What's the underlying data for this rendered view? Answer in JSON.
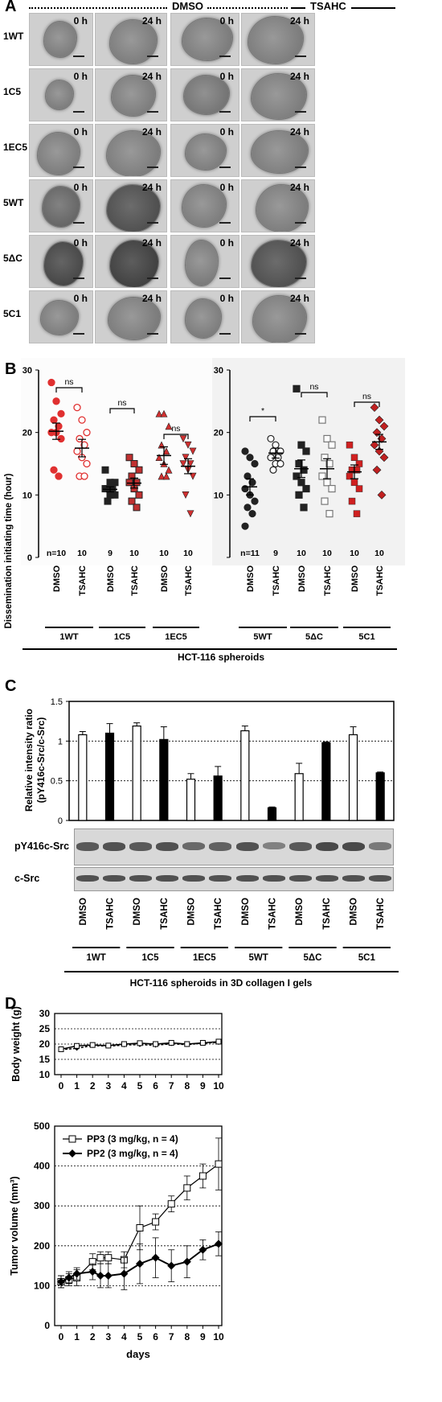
{
  "panel_a": {
    "letter": "A",
    "groups": [
      "DMSO",
      "TSAHC"
    ],
    "time_labels": [
      "0 h",
      "24 h",
      "0 h",
      "24 h"
    ],
    "rows": [
      "1WT",
      "1C5",
      "1EC5",
      "5WT",
      "5ΔC",
      "5C1"
    ]
  },
  "panel_b": {
    "letter": "B",
    "ylabel": "Dissemination initiating time (hour)",
    "xlabel": "HCT-116 spheroids",
    "chart_data": [
      {
        "type": "scatter",
        "ylim": [
          0,
          30
        ],
        "yticks": [
          0,
          10,
          20,
          30
        ],
        "column_labels": [
          "DMSO",
          "TSAHC",
          "DMSO",
          "TSAHC",
          "DMSO",
          "TSAHC"
        ],
        "group_labels": [
          "1WT",
          "1C5",
          "1EC5"
        ],
        "n_labels": [
          "n=10",
          "10",
          "9",
          "10",
          "10",
          "10"
        ],
        "means": [
          20.2,
          17.5,
          10.9,
          11.9,
          16.3,
          14.6
        ],
        "sem": [
          1.3,
          1.4,
          0.4,
          0.8,
          1.4,
          1.2
        ],
        "significance": [
          {
            "cols": [
              0,
              1
            ],
            "label": "ns"
          },
          {
            "cols": [
              2,
              3
            ],
            "label": "ns"
          },
          {
            "cols": [
              4,
              5
            ],
            "label": "ns"
          }
        ],
        "points": [
          [
            28,
            25,
            23,
            22,
            21,
            20,
            20,
            19,
            14,
            13
          ],
          [
            24,
            22,
            20,
            19,
            18,
            17,
            16,
            15,
            13,
            13
          ],
          [
            14,
            12,
            12,
            11,
            11,
            11,
            10,
            10,
            9
          ],
          [
            16,
            15,
            14,
            13,
            12,
            12,
            11,
            10,
            9,
            8
          ],
          [
            23,
            23,
            21,
            18,
            17,
            16,
            15,
            14,
            13,
            13
          ],
          [
            19,
            18,
            17,
            16,
            15,
            15,
            14,
            13,
            10,
            7
          ]
        ],
        "colors": [
          "#e03030",
          "#e03030",
          "#222222",
          "#d03030",
          "#d03030",
          "#d03030"
        ]
      },
      {
        "type": "scatter",
        "ylim": [
          0,
          30
        ],
        "yticks": [
          10,
          20,
          30
        ],
        "column_labels": [
          "DMSO",
          "TSAHC",
          "DMSO",
          "TSAHC",
          "DMSO",
          "TSAHC"
        ],
        "group_labels": [
          "5WT",
          "5ΔC",
          "5C1"
        ],
        "n_labels": [
          "n=11",
          "9",
          "10",
          "10",
          "10",
          "10"
        ],
        "means": [
          11.3,
          16.7,
          14.2,
          14.2,
          13.7,
          18.5
        ],
        "sem": [
          1.3,
          0.8,
          1.4,
          1.6,
          1.1,
          1.2
        ],
        "significance": [
          {
            "cols": [
              0,
              1
            ],
            "label": "*"
          },
          {
            "cols": [
              2,
              3
            ],
            "label": "ns"
          },
          {
            "cols": [
              4,
              5
            ],
            "label": "ns"
          }
        ],
        "points": [
          [
            17,
            16,
            15,
            13,
            12,
            11,
            10,
            9,
            8,
            7,
            5
          ],
          [
            19,
            18,
            17,
            17,
            16,
            16,
            15,
            15,
            14
          ],
          [
            27,
            18,
            17,
            15,
            14,
            13,
            12,
            11,
            10,
            8
          ],
          [
            22,
            19,
            18,
            16,
            15,
            13,
            12,
            11,
            9,
            7
          ],
          [
            18,
            16,
            15,
            14,
            14,
            13,
            12,
            11,
            9,
            7
          ],
          [
            24,
            22,
            21,
            20,
            19,
            18,
            17,
            16,
            14,
            10
          ]
        ],
        "colors": [
          "#222222",
          "#888888",
          "#222222",
          "#888888",
          "#d03030",
          "#d03030"
        ]
      }
    ]
  },
  "panel_c": {
    "letter": "C",
    "ylabel_line1": "Relative intensity ratio",
    "ylabel_line2": "(pY416c-Src/c-Src)",
    "blot_labels": [
      "pY416c-Src",
      "c-Src"
    ],
    "xlabel": "HCT-116 spheroids in 3D collagen I gels",
    "chart_data": {
      "type": "bar",
      "ylim": [
        0,
        1.5
      ],
      "yticks": [
        "0",
        "0.5",
        "1",
        "1.5"
      ],
      "categories": [
        "DMSO",
        "TSAHC",
        "DMSO",
        "TSAHC",
        "DMSO",
        "TSAHC",
        "DMSO",
        "TSAHC",
        "DMSO",
        "TSAHC",
        "DMSO",
        "TSAHC"
      ],
      "groups": [
        "1WT",
        "1C5",
        "1EC5",
        "5WT",
        "5ΔC",
        "5C1"
      ],
      "values": [
        1.08,
        1.1,
        1.19,
        1.02,
        0.52,
        0.56,
        1.13,
        0.16,
        0.59,
        0.98,
        1.08,
        0.6
      ],
      "errors": [
        0.04,
        0.12,
        0.04,
        0.16,
        0.07,
        0.12,
        0.06,
        0.01,
        0.13,
        0.01,
        0.1,
        0.01
      ],
      "fills": [
        "#ffffff",
        "#000000",
        "#ffffff",
        "#000000",
        "#ffffff",
        "#000000",
        "#ffffff",
        "#000000",
        "#ffffff",
        "#000000",
        "#ffffff",
        "#000000"
      ]
    }
  },
  "panel_d": {
    "letter": "D",
    "weight": {
      "chart_data": {
        "type": "line",
        "ylabel": "Body weight (g)",
        "ylim": [
          10,
          30
        ],
        "yticks": [
          10,
          15,
          20,
          25,
          30
        ],
        "x": [
          0,
          1,
          2,
          3,
          4,
          5,
          6,
          7,
          8,
          9,
          10
        ],
        "series": [
          {
            "values": [
              18.3,
              19.4,
              19.7,
              19.5,
              20.0,
              20.3,
              20.0,
              20.4,
              20.0,
              20.4,
              20.8
            ]
          },
          {
            "values": [
              18.2,
              18.6,
              19.5,
              19.3,
              19.7,
              19.8,
              19.6,
              20.1,
              19.8,
              20.3,
              20.5
            ]
          }
        ]
      }
    },
    "tumor": {
      "chart_data": {
        "type": "line",
        "xlabel": "days",
        "ylabel": "Tumor volume (mm³)",
        "ylim": [
          0,
          500
        ],
        "yticks": [
          0,
          100,
          200,
          300,
          400,
          500
        ],
        "x": [
          0,
          0.5,
          1,
          2,
          2.5,
          3,
          4,
          5,
          6,
          7,
          8,
          9,
          10
        ],
        "xticks": [
          0,
          1,
          2,
          3,
          4,
          5,
          6,
          7,
          8,
          9,
          10
        ],
        "series": [
          {
            "name": "PP3 (3 mg/kg, n = 4)",
            "values": [
              110,
              115,
              120,
              160,
              170,
              170,
              165,
              245,
              260,
              305,
              345,
              375,
              405
            ],
            "errors": [
              15,
              15,
              20,
              20,
              15,
              15,
              20,
              55,
              20,
              20,
              30,
              30,
              65
            ]
          },
          {
            "name": "PP2 (3 mg/kg, n = 4)",
            "values": [
              110,
              120,
              130,
              135,
              125,
              125,
              130,
              155,
              170,
              150,
              160,
              190,
              205
            ],
            "errors": [
              15,
              15,
              15,
              20,
              30,
              30,
              40,
              50,
              50,
              40,
              40,
              25,
              30
            ]
          }
        ]
      }
    }
  }
}
